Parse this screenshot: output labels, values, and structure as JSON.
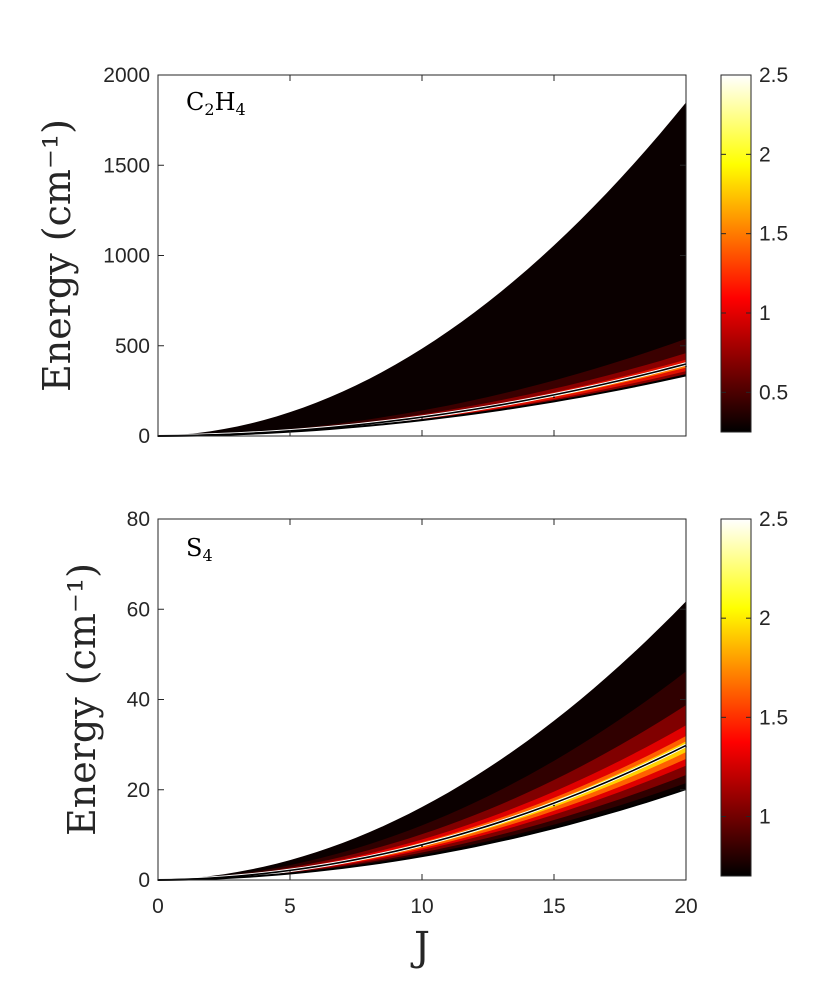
{
  "chart_data": [
    {
      "type": "heatmap",
      "panel_label": {
        "base": "C",
        "sub1": "2",
        "mid": "H",
        "sub2": "4"
      },
      "xlabel": "",
      "ylabel": "Energy (cm⁻¹)",
      "xlim": [
        0,
        20
      ],
      "ylim": [
        0,
        2000
      ],
      "xticks": [
        0,
        5,
        10,
        15,
        20
      ],
      "yticks": [
        0,
        500,
        1000,
        1500,
        2000
      ],
      "ytick_labels": [
        "0",
        "500",
        "1000",
        "1500",
        "2000"
      ],
      "upper_coef": 4.4,
      "lower_coef": 0.8,
      "curve_coef": 0.95,
      "curve_values": {
        "J": [
          0,
          5,
          10,
          15,
          20
        ],
        "energy": [
          0,
          25,
          100,
          215,
          385
        ]
      },
      "colorbar": {
        "min": 0.25,
        "max": 2.5,
        "ticks": [
          0.5,
          1,
          1.5,
          2,
          2.5
        ],
        "tick_labels": [
          "0.5",
          "1",
          "1.5",
          "2",
          "2.5"
        ]
      }
    },
    {
      "type": "heatmap",
      "panel_label": {
        "base": "S",
        "sub1": "4"
      },
      "xlabel": "J",
      "ylabel": "Energy (cm⁻¹)",
      "xlim": [
        0,
        20
      ],
      "ylim": [
        0,
        80
      ],
      "xticks": [
        0,
        5,
        10,
        15,
        20
      ],
      "xtick_labels": [
        "0",
        "5",
        "10",
        "15",
        "20"
      ],
      "yticks": [
        0,
        20,
        40,
        60,
        80
      ],
      "ytick_labels": [
        "0",
        "20",
        "40",
        "60",
        "80"
      ],
      "upper_coef": 0.147,
      "lower_coef": 0.048,
      "curve_coef": 0.071,
      "curve_values": {
        "J": [
          0,
          5,
          10,
          15,
          20
        ],
        "energy": [
          0,
          2,
          7.5,
          16.5,
          29.5
        ]
      },
      "colorbar": {
        "min": 0.7,
        "max": 2.5,
        "ticks": [
          1,
          1.5,
          2,
          2.5
        ],
        "tick_labels": [
          "1",
          "1.5",
          "2",
          "2.5"
        ]
      }
    }
  ]
}
